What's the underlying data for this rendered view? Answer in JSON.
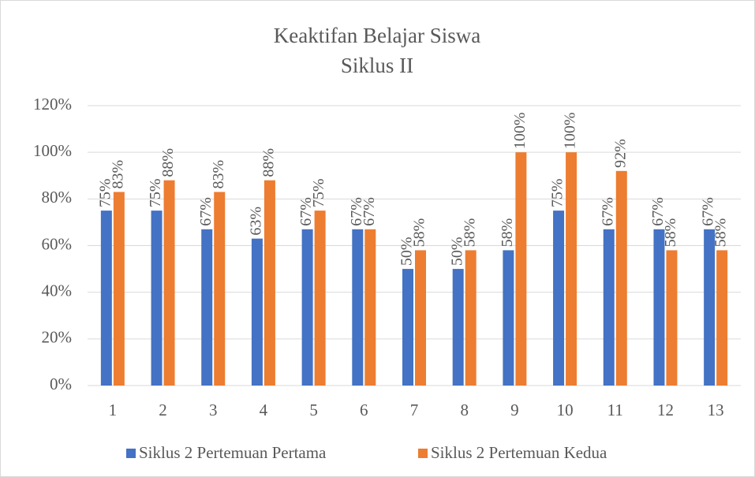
{
  "chart_data": {
    "type": "bar",
    "title": [
      "Keaktifan Belajar Siswa",
      "Siklus II"
    ],
    "categories": [
      "1",
      "2",
      "3",
      "4",
      "5",
      "6",
      "7",
      "8",
      "9",
      "10",
      "11",
      "12",
      "13"
    ],
    "series": [
      {
        "name": "Siklus 2 Pertemuan Pertama",
        "color": "#4472c4",
        "values": [
          75,
          75,
          67,
          63,
          67,
          67,
          50,
          50,
          58,
          75,
          67,
          67,
          67
        ],
        "value_labels": [
          "75%",
          "75%",
          "67%",
          "63%",
          "67%",
          "67%",
          "50%",
          "50%",
          "58%",
          "75%",
          "67%",
          "67%",
          "67%"
        ]
      },
      {
        "name": "Siklus 2 Pertemuan Kedua",
        "color": "#ed7d31",
        "values": [
          83,
          88,
          83,
          88,
          75,
          67,
          58,
          58,
          100,
          100,
          92,
          58,
          58
        ],
        "value_labels": [
          "83%",
          "88%",
          "83%",
          "88%",
          "75%",
          "67%",
          "58%",
          "58%",
          "100%",
          "100%",
          "92%",
          "58%",
          "58%"
        ]
      }
    ],
    "ylim": [
      0,
      120
    ],
    "yticks": [
      {
        "value": 0,
        "label": "0%"
      },
      {
        "value": 20,
        "label": "20%"
      },
      {
        "value": 40,
        "label": "40%"
      },
      {
        "value": 60,
        "label": "60%"
      },
      {
        "value": 80,
        "label": "80%"
      },
      {
        "value": 100,
        "label": "100%"
      },
      {
        "value": 120,
        "label": "120%"
      }
    ],
    "grid": true,
    "legend": "bottom"
  }
}
